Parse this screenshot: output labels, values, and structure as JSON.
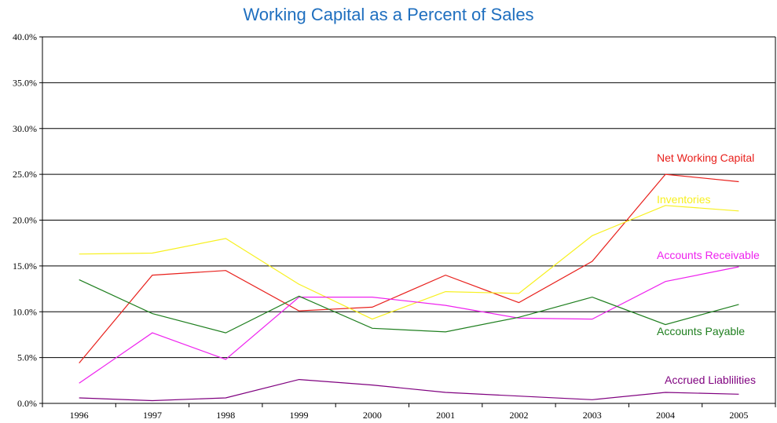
{
  "chart_data": {
    "type": "line",
    "title": "Working Capital as a Percent of Sales",
    "categories": [
      "1996",
      "1997",
      "1998",
      "1999",
      "2000",
      "2001",
      "2002",
      "2003",
      "2004",
      "2005"
    ],
    "ylim": [
      0,
      40
    ],
    "yticks": [
      "0.0%",
      "5.0%",
      "10.0%",
      "15.0%",
      "20.0%",
      "25.0%",
      "30.0%",
      "35.0%",
      "40.0%"
    ],
    "grid": "horizontal",
    "series": [
      {
        "name": "Net Working Capital",
        "color": "#e8201c",
        "values": [
          4.4,
          14.0,
          14.5,
          10.1,
          10.5,
          14.0,
          11.0,
          15.5,
          25.0,
          24.2
        ]
      },
      {
        "name": "Inventories",
        "color": "#f7f01f",
        "values": [
          16.3,
          16.4,
          18.0,
          13.0,
          9.2,
          12.2,
          12.0,
          18.3,
          21.6,
          21.0
        ]
      },
      {
        "name": "Accounts Receivable",
        "color": "#ee22ee",
        "values": [
          2.2,
          7.7,
          4.8,
          11.6,
          11.6,
          10.7,
          9.3,
          9.2,
          13.3,
          14.9
        ]
      },
      {
        "name": "Accounts Payable",
        "color": "#1f7f1f",
        "values": [
          13.5,
          9.8,
          7.7,
          11.7,
          8.2,
          7.8,
          9.4,
          11.6,
          8.6,
          10.8
        ]
      },
      {
        "name": "Accrued Liablilities",
        "color": "#7f007f",
        "values": [
          0.6,
          0.3,
          0.6,
          2.6,
          2.0,
          1.2,
          0.8,
          0.4,
          1.2,
          1.0
        ]
      }
    ]
  }
}
